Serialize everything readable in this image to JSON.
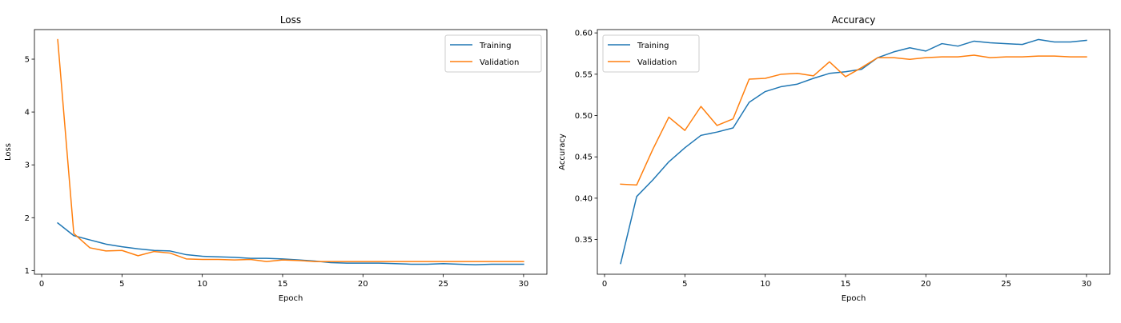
{
  "chart_data": [
    {
      "type": "line",
      "title": "Loss",
      "xlabel": "Epoch",
      "ylabel": "Loss",
      "xlim": [
        -0.45,
        31.45
      ],
      "ylim": [
        0.93,
        5.56
      ],
      "xticks": [
        0,
        5,
        10,
        15,
        20,
        25,
        30
      ],
      "yticks": [
        1,
        2,
        3,
        4,
        5
      ],
      "grid": false,
      "legend": "upper right",
      "x": [
        1,
        2,
        3,
        4,
        5,
        6,
        7,
        8,
        9,
        10,
        11,
        12,
        13,
        14,
        15,
        16,
        17,
        18,
        19,
        20,
        21,
        22,
        23,
        24,
        25,
        26,
        27,
        28,
        29,
        30
      ],
      "series": [
        {
          "name": "Training",
          "color": "#1f77b4",
          "values": [
            1.9,
            1.66,
            1.58,
            1.5,
            1.45,
            1.41,
            1.38,
            1.37,
            1.3,
            1.27,
            1.26,
            1.25,
            1.23,
            1.23,
            1.22,
            1.2,
            1.18,
            1.15,
            1.14,
            1.14,
            1.14,
            1.13,
            1.12,
            1.12,
            1.13,
            1.12,
            1.11,
            1.12,
            1.12,
            1.12
          ]
        },
        {
          "name": "Validation",
          "color": "#ff7f0e",
          "values": [
            5.37,
            1.7,
            1.43,
            1.37,
            1.38,
            1.28,
            1.36,
            1.33,
            1.22,
            1.21,
            1.21,
            1.2,
            1.21,
            1.17,
            1.2,
            1.19,
            1.17,
            1.17,
            1.17,
            1.17,
            1.17,
            1.17,
            1.17,
            1.17,
            1.17,
            1.17,
            1.17,
            1.17,
            1.17,
            1.17
          ]
        }
      ]
    },
    {
      "type": "line",
      "title": "Accuracy",
      "xlabel": "Epoch",
      "ylabel": "Accuracy",
      "xlim": [
        -0.45,
        31.45
      ],
      "ylim": [
        0.308,
        0.604
      ],
      "xticks": [
        0,
        5,
        10,
        15,
        20,
        25,
        30
      ],
      "yticks": [
        0.35,
        0.4,
        0.45,
        0.5,
        0.55,
        0.6
      ],
      "ytick_labels": [
        "0.35",
        "0.40",
        "0.45",
        "0.50",
        "0.55",
        "0.60"
      ],
      "grid": false,
      "legend": "upper left",
      "x": [
        1,
        2,
        3,
        4,
        5,
        6,
        7,
        8,
        9,
        10,
        11,
        12,
        13,
        14,
        15,
        16,
        17,
        18,
        19,
        20,
        21,
        22,
        23,
        24,
        25,
        26,
        27,
        28,
        29,
        30
      ],
      "series": [
        {
          "name": "Training",
          "color": "#1f77b4",
          "values": [
            0.321,
            0.402,
            0.422,
            0.444,
            0.461,
            0.476,
            0.48,
            0.485,
            0.516,
            0.529,
            0.535,
            0.538,
            0.545,
            0.551,
            0.553,
            0.556,
            0.57,
            0.577,
            0.582,
            0.578,
            0.587,
            0.584,
            0.59,
            0.588,
            0.587,
            0.586,
            0.592,
            0.589,
            0.589,
            0.591
          ]
        },
        {
          "name": "Validation",
          "color": "#ff7f0e",
          "values": [
            0.417,
            0.416,
            0.459,
            0.498,
            0.482,
            0.511,
            0.488,
            0.496,
            0.544,
            0.545,
            0.55,
            0.551,
            0.548,
            0.565,
            0.547,
            0.558,
            0.57,
            0.57,
            0.568,
            0.57,
            0.571,
            0.571,
            0.573,
            0.57,
            0.571,
            0.571,
            0.572,
            0.572,
            0.571,
            0.571
          ]
        }
      ]
    }
  ]
}
